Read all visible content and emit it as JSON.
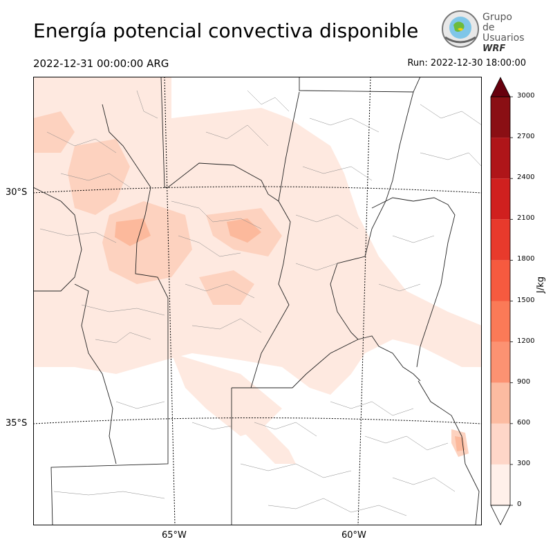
{
  "header": {
    "title": "Energía potencial convectiva disponible",
    "valid_time": "2022-12-31 00:00:00 ARG",
    "run": "Run: 2022-12-30 18:00:00"
  },
  "logo": {
    "line1": "Grupo de",
    "line2": "Usuarios",
    "line3": "WRF"
  },
  "map": {
    "lat_labels": [
      "30°S",
      "35°S"
    ],
    "lon_labels": [
      "65°W",
      "60°W"
    ],
    "field": "CAPE"
  },
  "colorbar": {
    "label": "J/kg",
    "ticks": [
      "0",
      "300",
      "600",
      "900",
      "1200",
      "1500",
      "1800",
      "2100",
      "2400",
      "2700",
      "3000"
    ],
    "colors": [
      "#fff0ea",
      "#fed6c8",
      "#fcbba1",
      "#fc9272",
      "#fb7a57",
      "#f65a3f",
      "#e83a2c",
      "#d0201f",
      "#af1519",
      "#8a0f14",
      "#67000d"
    ],
    "extend_color": "#67000d"
  }
}
